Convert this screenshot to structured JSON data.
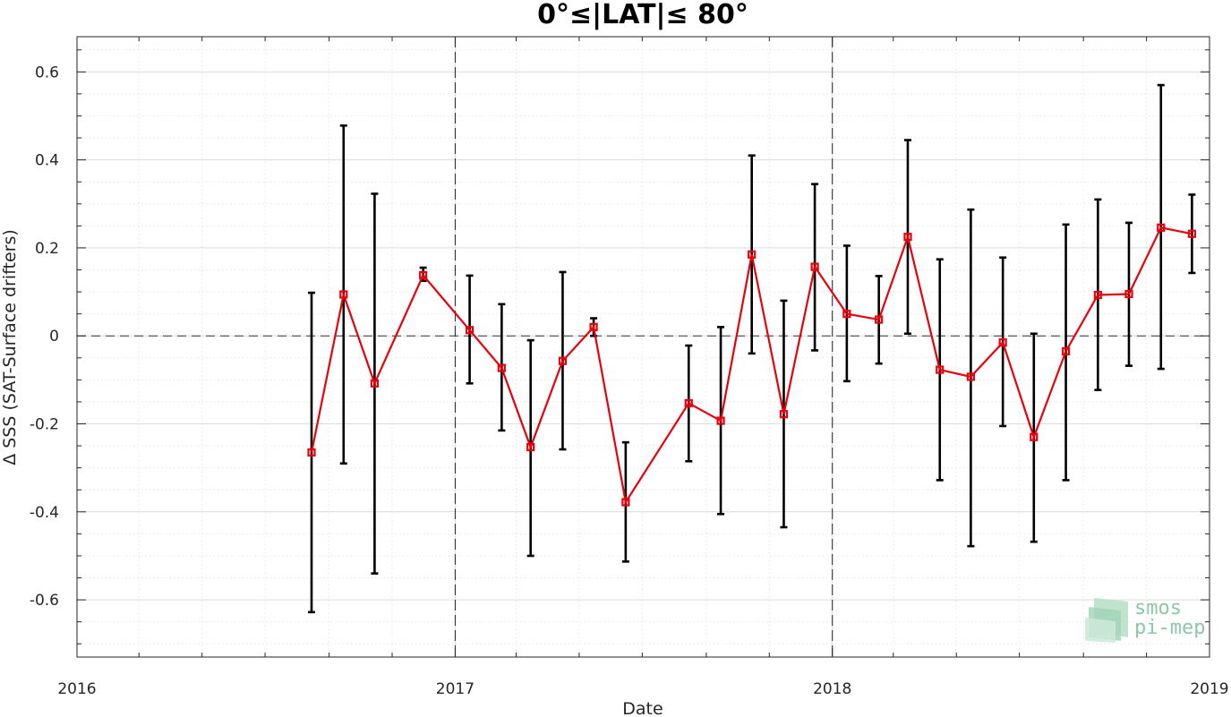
{
  "chart_data": {
    "type": "line",
    "title": "0°≤|LAT|≤ 80°",
    "xlabel": "Date",
    "ylabel": "Δ SSS (SAT-Surface drifters)",
    "xlim": [
      "2016-01-01",
      "2019-01-01"
    ],
    "ylim": [
      -0.73,
      0.68
    ],
    "x_ticks": [
      "2016",
      "2017",
      "2018",
      "2019"
    ],
    "y_ticks": [
      -0.6,
      -0.4,
      -0.2,
      0,
      0.2,
      0.4,
      0.6
    ],
    "y_tick_labels": [
      "-0.6",
      "-0.4",
      "-0.2",
      "0",
      "0.2",
      "0.4",
      "0.6"
    ],
    "grid": true,
    "zero_line": true,
    "year_divider_lines": [
      "2017",
      "2018"
    ],
    "series": [
      {
        "color": "#e8000b",
        "marker": "square",
        "error_bar_color": "#000000",
        "points": [
          {
            "x": "2016-08-15",
            "y": -0.265,
            "low": -0.628,
            "high": 0.098
          },
          {
            "x": "2016-09-15",
            "y": 0.094,
            "low": -0.29,
            "high": 0.478
          },
          {
            "x": "2016-10-15",
            "y": -0.108,
            "low": -0.54,
            "high": 0.323
          },
          {
            "x": "2016-12-01",
            "y": 0.138,
            "low": 0.125,
            "high": 0.155
          },
          {
            "x": "2017-01-15",
            "y": 0.013,
            "low": -0.108,
            "high": 0.137
          },
          {
            "x": "2017-02-15",
            "y": -0.073,
            "low": -0.215,
            "high": 0.072
          },
          {
            "x": "2017-03-15",
            "y": -0.253,
            "low": -0.5,
            "high": -0.01
          },
          {
            "x": "2017-04-15",
            "y": -0.057,
            "low": -0.258,
            "high": 0.145
          },
          {
            "x": "2017-05-15",
            "y": 0.02,
            "low": 0.0,
            "high": 0.04
          },
          {
            "x": "2017-06-15",
            "y": -0.378,
            "low": -0.513,
            "high": -0.242
          },
          {
            "x": "2017-08-15",
            "y": -0.153,
            "low": -0.285,
            "high": -0.022
          },
          {
            "x": "2017-09-15",
            "y": -0.193,
            "low": -0.405,
            "high": 0.02
          },
          {
            "x": "2017-10-15",
            "y": 0.185,
            "low": -0.04,
            "high": 0.41
          },
          {
            "x": "2017-11-15",
            "y": -0.178,
            "low": -0.435,
            "high": 0.08
          },
          {
            "x": "2017-12-15",
            "y": 0.157,
            "low": -0.033,
            "high": 0.345
          },
          {
            "x": "2018-01-15",
            "y": 0.05,
            "low": -0.103,
            "high": 0.205
          },
          {
            "x": "2018-02-15",
            "y": 0.037,
            "low": -0.063,
            "high": 0.136
          },
          {
            "x": "2018-03-15",
            "y": 0.225,
            "low": 0.005,
            "high": 0.445
          },
          {
            "x": "2018-04-15",
            "y": -0.077,
            "low": -0.328,
            "high": 0.174
          },
          {
            "x": "2018-05-15",
            "y": -0.093,
            "low": -0.478,
            "high": 0.287
          },
          {
            "x": "2018-06-15",
            "y": -0.015,
            "low": -0.205,
            "high": 0.178
          },
          {
            "x": "2018-07-15",
            "y": -0.23,
            "low": -0.468,
            "high": 0.005
          },
          {
            "x": "2018-08-15",
            "y": -0.035,
            "low": -0.328,
            "high": 0.253
          },
          {
            "x": "2018-09-15",
            "y": 0.093,
            "low": -0.123,
            "high": 0.31
          },
          {
            "x": "2018-10-15",
            "y": 0.095,
            "low": -0.068,
            "high": 0.257
          },
          {
            "x": "2018-11-15",
            "y": 0.246,
            "low": -0.075,
            "high": 0.57
          },
          {
            "x": "2018-12-15",
            "y": 0.232,
            "low": 0.143,
            "high": 0.321
          }
        ]
      }
    ]
  },
  "logo": {
    "line1": "smos",
    "line2": "pi-mep",
    "color": "#8cc8a6"
  }
}
